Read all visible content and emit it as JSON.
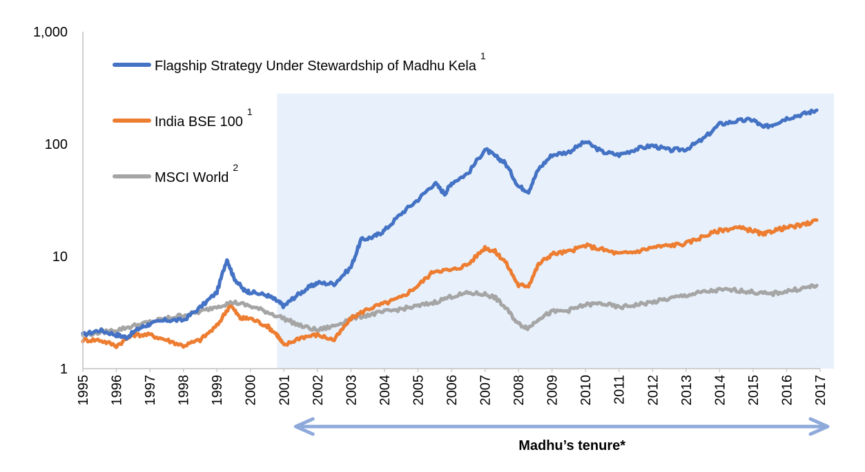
{
  "chart_data": {
    "type": "line",
    "title": "",
    "xlabel": "",
    "ylabel": "",
    "y_scale": "log",
    "ylim": [
      1,
      1000
    ],
    "xlim": [
      1995,
      2017
    ],
    "y_ticks": [
      1,
      10,
      100,
      1000
    ],
    "y_tick_labels": [
      "1",
      "10",
      "100",
      "1,000"
    ],
    "x_tick_labels": [
      "1995",
      "1996",
      "1997",
      "1998",
      "1999",
      "2000",
      "2001",
      "2002",
      "2003",
      "2004",
      "2005",
      "2006",
      "2007",
      "2008",
      "2009",
      "2010",
      "2011",
      "2012",
      "2013",
      "2014",
      "2015",
      "2016",
      "2017"
    ],
    "grid": false,
    "legend_position": "top-left",
    "shaded_region": {
      "x_from": 2001,
      "x_to": 2017,
      "color": "#e8f1fb"
    },
    "annotation": {
      "text": "Madhu’s tenure*",
      "x_from": 2001,
      "x_to": 2017,
      "arrow_color": "#8eaadb"
    },
    "series": [
      {
        "name": "Flagship Strategy Under Stewardship of Madhu Kela",
        "superscript": "1",
        "color": "#4472c4",
        "x": [
          1995,
          1995.5,
          1996,
          1996.3,
          1996.7,
          1997,
          1997.5,
          1998,
          1998.5,
          1999,
          1999.3,
          1999.5,
          1999.8,
          2000,
          2000.5,
          2000.8,
          2001,
          2001.3,
          2001.7,
          2002,
          2002.5,
          2003,
          2003.3,
          2003.7,
          2004,
          2004.5,
          2005,
          2005.5,
          2005.8,
          2006,
          2006.5,
          2007,
          2007.3,
          2007.6,
          2008,
          2008.3,
          2008.6,
          2009,
          2009.5,
          2010,
          2010.5,
          2011,
          2011.5,
          2012,
          2012.5,
          2013,
          2013.5,
          2014,
          2014.5,
          2015,
          2015.3,
          2015.6,
          2016,
          2016.5,
          2016.9
        ],
        "values": [
          2.0,
          2.2,
          2.0,
          1.9,
          2.3,
          2.5,
          2.7,
          2.7,
          3.5,
          4.8,
          9.5,
          6.5,
          5.0,
          4.8,
          4.5,
          4.0,
          3.6,
          4.3,
          5.2,
          5.8,
          5.7,
          8.0,
          14,
          15,
          17,
          24,
          32,
          45,
          36,
          45,
          55,
          90,
          78,
          68,
          42,
          38,
          60,
          80,
          85,
          105,
          85,
          80,
          90,
          97,
          88,
          90,
          110,
          150,
          160,
          165,
          140,
          150,
          170,
          185,
          200
        ]
      },
      {
        "name": "India BSE 100",
        "superscript": "1",
        "color": "#ed7d31",
        "x": [
          1995,
          1995.5,
          1996,
          1996.5,
          1997,
          1997.5,
          1998,
          1998.5,
          1999,
          1999.4,
          1999.7,
          2000,
          2000.5,
          2000.8,
          2001,
          2001.5,
          2002,
          2002.5,
          2003,
          2003.5,
          2004,
          2004.5,
          2005,
          2005.5,
          2006,
          2006.5,
          2007,
          2007.3,
          2007.6,
          2008,
          2008.3,
          2008.6,
          2009,
          2009.5,
          2010,
          2010.5,
          2011,
          2011.5,
          2012,
          2012.5,
          2013,
          2013.5,
          2014,
          2014.5,
          2015,
          2015.3,
          2015.6,
          2016,
          2016.5,
          2016.9
        ],
        "values": [
          1.8,
          1.8,
          1.6,
          2.0,
          2.0,
          1.8,
          1.6,
          1.8,
          2.4,
          3.7,
          2.8,
          2.8,
          2.4,
          2.0,
          1.6,
          1.9,
          2.0,
          1.8,
          2.8,
          3.4,
          3.8,
          4.3,
          5.5,
          7.5,
          7.5,
          8.5,
          12,
          11,
          9.0,
          5.5,
          5.5,
          8.5,
          10.5,
          11,
          12.5,
          11.5,
          10.5,
          11,
          12,
          12.5,
          13,
          15,
          17,
          18,
          17,
          15.5,
          17,
          18,
          19,
          21
        ]
      },
      {
        "name": "MSCI World",
        "superscript": "2",
        "color": "#a5a5a5",
        "x": [
          1995,
          1995.5,
          1996,
          1996.5,
          1997,
          1997.5,
          1998,
          1998.5,
          1999,
          1999.5,
          2000,
          2000.5,
          2001,
          2001.5,
          2002,
          2002.5,
          2003,
          2003.5,
          2004,
          2004.5,
          2005,
          2005.5,
          2006,
          2006.5,
          2007,
          2007.3,
          2007.6,
          2008,
          2008.3,
          2008.6,
          2009,
          2009.5,
          2010,
          2010.5,
          2011,
          2011.5,
          2012,
          2012.5,
          2013,
          2013.5,
          2014,
          2014.5,
          2015,
          2015.5,
          2016,
          2016.5,
          2016.9
        ],
        "values": [
          2.0,
          2.1,
          2.2,
          2.4,
          2.6,
          2.8,
          3.0,
          3.2,
          3.6,
          3.9,
          3.6,
          3.2,
          2.8,
          2.4,
          2.2,
          2.4,
          2.8,
          3.0,
          3.2,
          3.4,
          3.6,
          3.9,
          4.4,
          4.7,
          4.6,
          4.3,
          3.5,
          2.5,
          2.3,
          2.8,
          3.2,
          3.3,
          3.7,
          3.8,
          3.5,
          3.7,
          3.9,
          4.2,
          4.5,
          4.8,
          5.0,
          5.0,
          4.8,
          4.6,
          4.9,
          5.2,
          5.5
        ]
      }
    ]
  }
}
